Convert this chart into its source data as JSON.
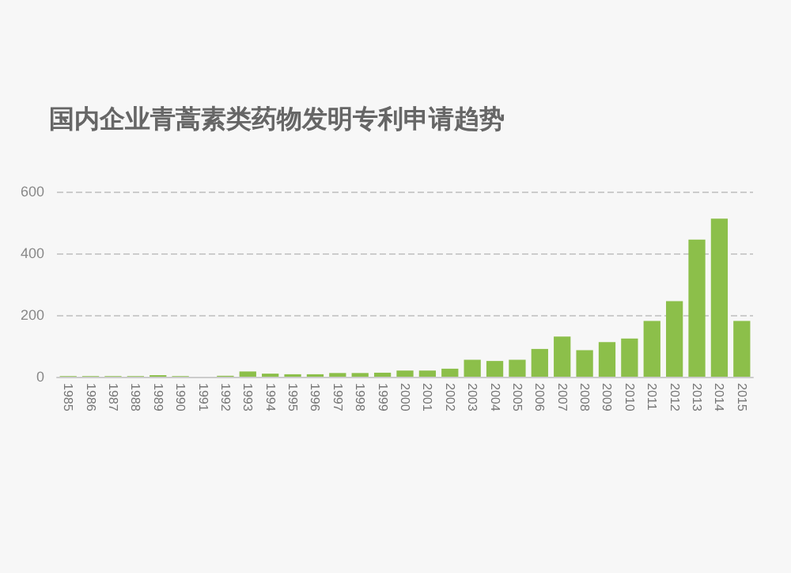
{
  "chart_data": {
    "type": "bar",
    "title": "国内企业青蒿素类药物发明专利申请趋势",
    "categories": [
      "1985",
      "1986",
      "1987",
      "1988",
      "1989",
      "1990",
      "1991",
      "1992",
      "1993",
      "1994",
      "1995",
      "1996",
      "1997",
      "1998",
      "1999",
      "2000",
      "2001",
      "2002",
      "2003",
      "2004",
      "2005",
      "2006",
      "2007",
      "2008",
      "2009",
      "2010",
      "2011",
      "2012",
      "2013",
      "2014",
      "2015"
    ],
    "values": [
      2,
      2,
      2,
      2,
      5,
      2,
      0,
      3,
      17,
      10,
      8,
      8,
      12,
      12,
      13,
      20,
      20,
      26,
      55,
      51,
      55,
      90,
      130,
      86,
      112,
      124,
      181,
      245,
      444,
      512,
      181
    ],
    "color": "#8cbf4a",
    "ylim": [
      0,
      600
    ],
    "yticks": [
      0,
      200,
      400,
      600
    ],
    "grid": "y"
  }
}
